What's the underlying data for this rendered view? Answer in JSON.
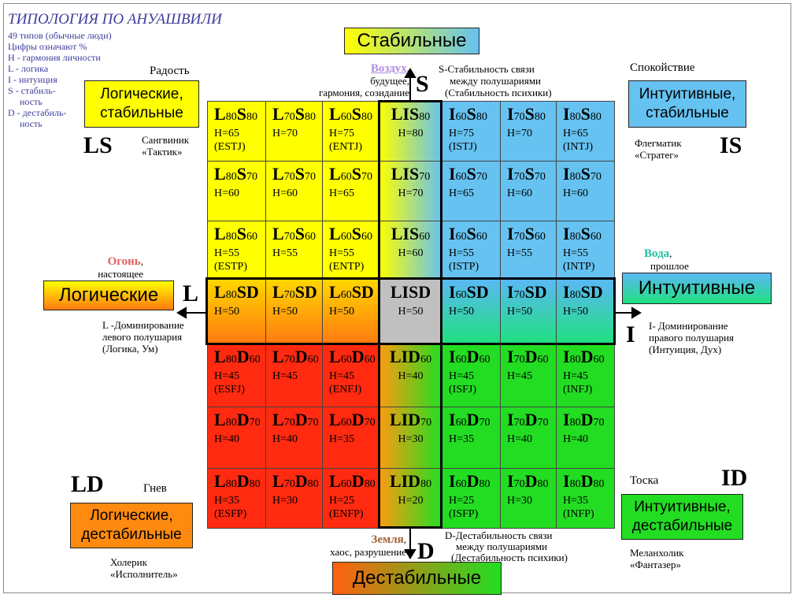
{
  "legend": {
    "title": "ТИПОЛОГИЯ ПО АНУАШВИЛИ",
    "lines": [
      "49 типов (обычные люди)",
      "Цифры означают %",
      "Н - гармония личности",
      "L - логика",
      "I -  интуиция",
      "S - стабиль-",
      "     ность",
      "D - дестабиль-",
      "     ность"
    ]
  },
  "directions": {
    "top": "Стабильные",
    "bottom": "Дестабильные",
    "left": "Логические",
    "right": "Интуитивные"
  },
  "axis_letters": {
    "top": "S",
    "bottom": "D",
    "left": "L",
    "right": "I"
  },
  "corners": {
    "tl": {
      "code": "LS",
      "box": [
        "Логические,",
        "стабильные"
      ],
      "emotion": "Радость",
      "temperament": [
        "Сангвиник",
        "«Тактик»"
      ]
    },
    "tr": {
      "code": "IS",
      "box": [
        "Интуитивные,",
        "стабильные"
      ],
      "emotion": "Спокойствие",
      "temperament": [
        "Флегматик",
        "«Стратег»"
      ]
    },
    "bl": {
      "code": "LD",
      "box": [
        "Логические,",
        "дестабильные"
      ],
      "emotion": "Гнев",
      "temperament": [
        "Холерик",
        "«Исполнитель»"
      ]
    },
    "br": {
      "code": "ID",
      "box": [
        "Интуитивные,",
        "дестабильные"
      ],
      "emotion": "Тоска",
      "temperament": [
        "Меланхолик",
        "«Фантазер»"
      ]
    }
  },
  "elements": {
    "air": {
      "name": "Воздух",
      "desc": [
        "будущее,",
        "гармония, созидание"
      ],
      "color": "#b08ee0"
    },
    "fire": {
      "name": "Огонь",
      "desc": [
        "настоящее"
      ],
      "color": "#e06060"
    },
    "water": {
      "name": "Вода",
      "desc": [
        "прошлое"
      ],
      "color": "#20c0a0"
    },
    "earth": {
      "name": "Земля",
      "desc": [
        "хаос, разрушение"
      ],
      "color": "#a06030"
    }
  },
  "axis_notes": {
    "s": [
      "S-Стабильность связи",
      "между полушариями",
      "(Стабильность психики)"
    ],
    "d": [
      "D-Дестабильность связи",
      "между полушариями",
      "(Дестабильность психики)"
    ],
    "l": [
      "L -Доминирование",
      "левого полушария",
      "(Логика, Ум)"
    ],
    "i": [
      "I- Доминирование",
      "правого полушария",
      "(Интуиция, Дух)"
    ]
  },
  "grid": [
    [
      {
        "a": "L",
        "an": "80",
        "b": "S",
        "bn": "80",
        "h": "Н=65",
        "m": "(ESTJ)"
      },
      {
        "a": "L",
        "an": "70",
        "b": "S",
        "bn": "80",
        "h": "Н=70",
        "m": ""
      },
      {
        "a": "L",
        "an": "60",
        "b": "S",
        "bn": "80",
        "h": "Н=75",
        "m": "(ENTJ)"
      },
      {
        "a": "LIS",
        "an": "",
        "b": "",
        "bn": "80",
        "h": "Н=80",
        "m": ""
      },
      {
        "a": "I",
        "an": "60",
        "b": "S",
        "bn": "80",
        "h": "Н=75",
        "m": "(ISTJ)"
      },
      {
        "a": "I",
        "an": "70",
        "b": "S",
        "bn": "80",
        "h": "Н=70",
        "m": ""
      },
      {
        "a": "I",
        "an": "80",
        "b": "S",
        "bn": "80",
        "h": "Н=65",
        "m": "(INTJ)"
      }
    ],
    [
      {
        "a": "L",
        "an": "80",
        "b": "S",
        "bn": "70",
        "h": "Н=60",
        "m": ""
      },
      {
        "a": "L",
        "an": "70",
        "b": "S",
        "bn": "70",
        "h": "Н=60",
        "m": ""
      },
      {
        "a": "L",
        "an": "60",
        "b": "S",
        "bn": "70",
        "h": "Н=65",
        "m": ""
      },
      {
        "a": "LIS",
        "an": "",
        "b": "",
        "bn": "70",
        "h": "Н=70",
        "m": ""
      },
      {
        "a": "I",
        "an": "60",
        "b": "S",
        "bn": "70",
        "h": "Н=65",
        "m": ""
      },
      {
        "a": "I",
        "an": "70",
        "b": "S",
        "bn": "70",
        "h": "Н=60",
        "m": ""
      },
      {
        "a": "I",
        "an": "80",
        "b": "S",
        "bn": "70",
        "h": "Н=60",
        "m": ""
      }
    ],
    [
      {
        "a": "L",
        "an": "80",
        "b": "S",
        "bn": "60",
        "h": "Н=55",
        "m": "(ESTP)"
      },
      {
        "a": "L",
        "an": "70",
        "b": "S",
        "bn": "60",
        "h": "Н=55",
        "m": ""
      },
      {
        "a": "L",
        "an": "60",
        "b": "S",
        "bn": "60",
        "h": "Н=55",
        "m": "(ENTP)"
      },
      {
        "a": "LIS",
        "an": "",
        "b": "",
        "bn": "60",
        "h": "Н=60",
        "m": ""
      },
      {
        "a": "I",
        "an": "60",
        "b": "S",
        "bn": "60",
        "h": "Н=55",
        "m": "(ISTP)"
      },
      {
        "a": "I",
        "an": "70",
        "b": "S",
        "bn": "60",
        "h": "Н=55",
        "m": ""
      },
      {
        "a": "I",
        "an": "80",
        "b": "S",
        "bn": "60",
        "h": "Н=55",
        "m": "(INTP)"
      }
    ],
    [
      {
        "a": "L",
        "an": "80",
        "b": "SD",
        "bn": "",
        "h": "Н=50",
        "m": ""
      },
      {
        "a": "L",
        "an": "70",
        "b": "SD",
        "bn": "",
        "h": "Н=50",
        "m": ""
      },
      {
        "a": "L",
        "an": "60",
        "b": "SD",
        "bn": "",
        "h": "Н=50",
        "m": ""
      },
      {
        "a": "LISD",
        "an": "",
        "b": "",
        "bn": "",
        "h": "Н=50",
        "m": ""
      },
      {
        "a": "I",
        "an": "60",
        "b": "SD",
        "bn": "",
        "h": "Н=50",
        "m": ""
      },
      {
        "a": "I",
        "an": "70",
        "b": "SD",
        "bn": "",
        "h": "Н=50",
        "m": ""
      },
      {
        "a": "I",
        "an": "80",
        "b": "SD",
        "bn": "",
        "h": "Н=50",
        "m": ""
      }
    ],
    [
      {
        "a": "L",
        "an": "80",
        "b": "D",
        "bn": "60",
        "h": "Н=45",
        "m": "(ESFJ)"
      },
      {
        "a": "L",
        "an": "70",
        "b": "D",
        "bn": "60",
        "h": "Н=45",
        "m": ""
      },
      {
        "a": "L",
        "an": "60",
        "b": "D",
        "bn": "60",
        "h": "Н=45",
        "m": "(ENFJ)"
      },
      {
        "a": "LID",
        "an": "",
        "b": "",
        "bn": "60",
        "h": "Н=40",
        "m": ""
      },
      {
        "a": "I",
        "an": "60",
        "b": "D",
        "bn": "60",
        "h": "Н=45",
        "m": "(ISFJ)"
      },
      {
        "a": "I",
        "an": "70",
        "b": "D",
        "bn": "60",
        "h": "Н=45",
        "m": ""
      },
      {
        "a": "I",
        "an": "80",
        "b": "D",
        "bn": "60",
        "h": "Н=45",
        "m": "(INFJ)"
      }
    ],
    [
      {
        "a": "L",
        "an": "80",
        "b": "D",
        "bn": "70",
        "h": "Н=40",
        "m": ""
      },
      {
        "a": "L",
        "an": "70",
        "b": "D",
        "bn": "70",
        "h": "Н=40",
        "m": ""
      },
      {
        "a": "L",
        "an": "60",
        "b": "D",
        "bn": "70",
        "h": "Н=35",
        "m": ""
      },
      {
        "a": "LID",
        "an": "",
        "b": "",
        "bn": "70",
        "h": "Н=30",
        "m": ""
      },
      {
        "a": "I",
        "an": "60",
        "b": "D",
        "bn": "70",
        "h": "Н=35",
        "m": ""
      },
      {
        "a": "I",
        "an": "70",
        "b": "D",
        "bn": "70",
        "h": "Н=40",
        "m": ""
      },
      {
        "a": "I",
        "an": "80",
        "b": "D",
        "bn": "70",
        "h": "Н=40",
        "m": ""
      }
    ],
    [
      {
        "a": "L",
        "an": "80",
        "b": "D",
        "bn": "80",
        "h": "Н=35",
        "m": "(ESFP)"
      },
      {
        "a": "L",
        "an": "70",
        "b": "D",
        "bn": "80",
        "h": "Н=30",
        "m": ""
      },
      {
        "a": "L",
        "an": "60",
        "b": "D",
        "bn": "80",
        "h": "Н=25",
        "m": "(ENFP)"
      },
      {
        "a": "LID",
        "an": "",
        "b": "",
        "bn": "80",
        "h": "Н=20",
        "m": ""
      },
      {
        "a": "I",
        "an": "60",
        "b": "D",
        "bn": "80",
        "h": "Н=25",
        "m": "(ISFP)"
      },
      {
        "a": "I",
        "an": "70",
        "b": "D",
        "bn": "80",
        "h": "Н=30",
        "m": ""
      },
      {
        "a": "I",
        "an": "80",
        "b": "D",
        "bn": "80",
        "h": "Н=35",
        "m": "(INFP)"
      }
    ]
  ],
  "colors": {
    "yellow": "#ffff00",
    "blue": "#66c2f0",
    "red": "#ff2a10",
    "green": "#22dd22",
    "grey": "#c0c0c0",
    "orange": "#f0a020"
  }
}
